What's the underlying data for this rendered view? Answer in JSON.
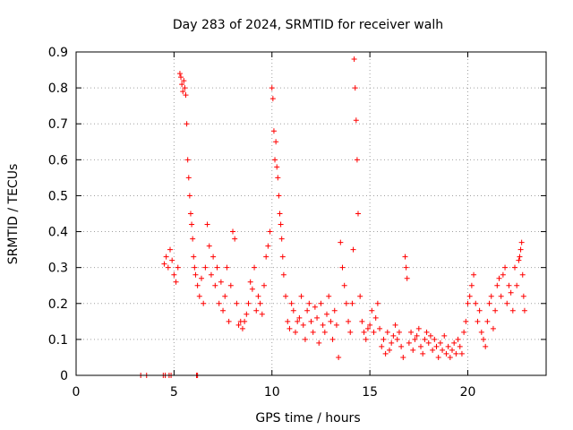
{
  "chart_data": {
    "type": "scatter",
    "title": "Day 283 of 2024, SRMTID for receiver walh",
    "xlabel": "GPS time / hours",
    "ylabel": "SRMTID / TECUs",
    "xlim": [
      0,
      24
    ],
    "ylim": [
      0,
      0.9
    ],
    "x_ticks": [
      0,
      5,
      10,
      15,
      20
    ],
    "x_tick_labels": [
      "0",
      "5",
      "10",
      "15",
      "20"
    ],
    "y_ticks": [
      0,
      0.1,
      0.2,
      0.3,
      0.4,
      0.5,
      0.6,
      0.7,
      0.8,
      0.9
    ],
    "y_tick_labels": [
      "0",
      "0.1",
      "0.2",
      "0.3",
      "0.4",
      "0.5",
      "0.6",
      "0.7",
      "0.8",
      "0.9"
    ],
    "grid": true,
    "marker": "+",
    "color": "#ff0000",
    "series": [
      {
        "name": "SRMTID",
        "x": [
          3.3,
          3.6,
          4.45,
          4.55,
          4.75,
          4.85,
          6.15,
          6.2,
          4.5,
          4.6,
          4.7,
          4.8,
          4.9,
          5.0,
          5.1,
          5.2,
          5.3,
          5.35,
          5.4,
          5.45,
          5.5,
          5.55,
          5.6,
          5.65,
          5.7,
          5.75,
          5.8,
          5.85,
          5.9,
          5.95,
          6.0,
          6.05,
          6.1,
          6.2,
          6.3,
          6.4,
          6.5,
          6.6,
          6.7,
          6.8,
          6.9,
          7.0,
          7.1,
          7.2,
          7.3,
          7.4,
          7.5,
          7.6,
          7.7,
          7.8,
          7.9,
          8.0,
          8.1,
          8.2,
          8.3,
          8.4,
          8.5,
          8.6,
          8.7,
          8.8,
          8.9,
          9.0,
          9.1,
          9.2,
          9.3,
          9.4,
          9.5,
          9.6,
          9.7,
          9.8,
          9.9,
          10.0,
          10.05,
          10.1,
          10.15,
          10.2,
          10.25,
          10.3,
          10.35,
          10.4,
          10.45,
          10.5,
          10.55,
          10.6,
          10.7,
          10.8,
          10.9,
          11.0,
          11.1,
          11.2,
          11.3,
          11.4,
          11.5,
          11.6,
          11.7,
          11.8,
          11.9,
          12.0,
          12.1,
          12.2,
          12.3,
          12.4,
          12.5,
          12.6,
          12.7,
          12.8,
          12.9,
          13.0,
          13.1,
          13.2,
          13.3,
          13.4,
          13.5,
          13.6,
          13.7,
          13.8,
          13.9,
          14.0,
          14.1,
          14.15,
          14.2,
          14.25,
          14.3,
          14.35,
          14.4,
          14.5,
          14.6,
          14.7,
          14.8,
          14.9,
          15.0,
          15.1,
          15.2,
          15.3,
          15.4,
          15.5,
          15.6,
          15.7,
          15.8,
          15.9,
          16.0,
          16.1,
          16.2,
          16.3,
          16.4,
          16.5,
          16.6,
          16.7,
          16.8,
          16.85,
          16.9,
          17.0,
          17.1,
          17.2,
          17.3,
          17.4,
          17.5,
          17.6,
          17.7,
          17.8,
          17.9,
          18.0,
          18.1,
          18.2,
          18.3,
          18.4,
          18.5,
          18.6,
          18.7,
          18.8,
          18.9,
          19.0,
          19.1,
          19.2,
          19.3,
          19.4,
          19.5,
          19.6,
          19.7,
          19.8,
          19.9,
          20.0,
          20.1,
          20.2,
          20.3,
          20.4,
          20.5,
          20.6,
          20.7,
          20.8,
          20.9,
          21.0,
          21.1,
          21.2,
          21.3,
          21.4,
          21.5,
          21.6,
          21.7,
          21.8,
          21.9,
          22.0,
          22.1,
          22.2,
          22.3,
          22.4,
          22.5,
          22.6,
          22.65,
          22.7,
          22.75,
          22.8,
          22.85,
          22.9
        ],
        "y": [
          0,
          0,
          0,
          0,
          0,
          0,
          0,
          0,
          0.31,
          0.33,
          0.3,
          0.35,
          0.32,
          0.28,
          0.26,
          0.3,
          0.84,
          0.83,
          0.81,
          0.79,
          0.82,
          0.8,
          0.78,
          0.7,
          0.6,
          0.55,
          0.5,
          0.45,
          0.42,
          0.38,
          0.33,
          0.3,
          0.28,
          0.25,
          0.22,
          0.27,
          0.2,
          0.3,
          0.42,
          0.36,
          0.28,
          0.33,
          0.25,
          0.3,
          0.2,
          0.26,
          0.18,
          0.22,
          0.3,
          0.15,
          0.25,
          0.4,
          0.38,
          0.2,
          0.14,
          0.15,
          0.13,
          0.15,
          0.17,
          0.2,
          0.26,
          0.24,
          0.3,
          0.18,
          0.22,
          0.2,
          0.17,
          0.25,
          0.33,
          0.36,
          0.4,
          0.8,
          0.77,
          0.68,
          0.6,
          0.65,
          0.58,
          0.55,
          0.5,
          0.45,
          0.42,
          0.38,
          0.33,
          0.28,
          0.22,
          0.15,
          0.13,
          0.2,
          0.18,
          0.12,
          0.15,
          0.16,
          0.22,
          0.14,
          0.1,
          0.18,
          0.2,
          0.15,
          0.12,
          0.19,
          0.16,
          0.09,
          0.2,
          0.14,
          0.12,
          0.17,
          0.22,
          0.15,
          0.1,
          0.18,
          0.14,
          0.05,
          0.37,
          0.3,
          0.25,
          0.2,
          0.15,
          0.12,
          0.2,
          0.35,
          0.88,
          0.8,
          0.71,
          0.6,
          0.45,
          0.22,
          0.15,
          0.12,
          0.1,
          0.13,
          0.14,
          0.18,
          0.12,
          0.16,
          0.2,
          0.13,
          0.08,
          0.1,
          0.06,
          0.12,
          0.07,
          0.09,
          0.11,
          0.14,
          0.1,
          0.12,
          0.08,
          0.05,
          0.33,
          0.3,
          0.27,
          0.09,
          0.12,
          0.07,
          0.1,
          0.11,
          0.13,
          0.08,
          0.06,
          0.1,
          0.12,
          0.09,
          0.11,
          0.07,
          0.1,
          0.08,
          0.05,
          0.09,
          0.07,
          0.11,
          0.06,
          0.08,
          0.05,
          0.07,
          0.09,
          0.06,
          0.1,
          0.08,
          0.06,
          0.12,
          0.15,
          0.2,
          0.22,
          0.25,
          0.28,
          0.2,
          0.15,
          0.18,
          0.12,
          0.1,
          0.08,
          0.15,
          0.2,
          0.22,
          0.13,
          0.18,
          0.25,
          0.27,
          0.22,
          0.28,
          0.3,
          0.2,
          0.25,
          0.23,
          0.18,
          0.3,
          0.25,
          0.32,
          0.33,
          0.35,
          0.37,
          0.28,
          0.22,
          0.18
        ]
      }
    ]
  }
}
